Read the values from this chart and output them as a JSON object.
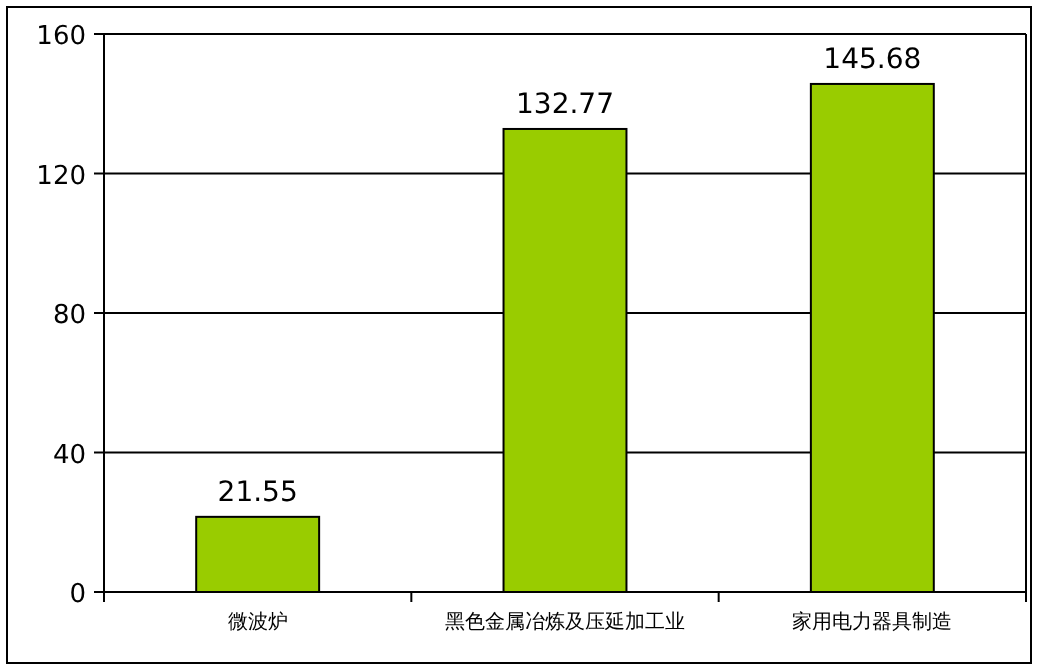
{
  "chart_data": {
    "type": "bar",
    "categories": [
      "微波炉",
      "黑色金属冶炼及压延加工业",
      "家用电力器具制造"
    ],
    "values": [
      21.55,
      132.77,
      145.68
    ],
    "color": "#99cc00",
    "ylim": [
      0,
      160
    ],
    "yticks": [
      0,
      40,
      80,
      120,
      160
    ],
    "grid": "y",
    "data_labels": true
  }
}
